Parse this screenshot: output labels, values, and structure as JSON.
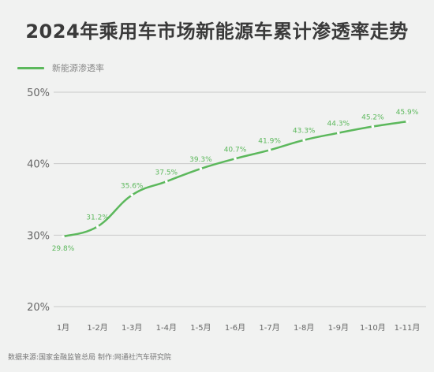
{
  "title": "2024年乘用车市场新能源车累计渗透率走势",
  "source": "数据来源:国家金融监管总局 制作:网通社汽车研究院",
  "colors": {
    "line": "#5cb85c",
    "grid": "#c9c9c9",
    "text": "#666666"
  },
  "chart_data": {
    "type": "line",
    "title": "2024年乘用车市场新能源车累计渗透率走势",
    "categories": [
      "1月",
      "1-2月",
      "1-3月",
      "1-4月",
      "1-5月",
      "1-6月",
      "1-7月",
      "1-8月",
      "1-9月",
      "1-10月",
      "1-11月"
    ],
    "series": [
      {
        "name": "新能源渗透率",
        "values": [
          29.8,
          31.2,
          35.6,
          37.5,
          39.3,
          40.7,
          41.9,
          43.3,
          44.3,
          45.2,
          45.9
        ],
        "labels": [
          "29.8%",
          "31.2%",
          "35.6%",
          "37.5%",
          "39.3%",
          "40.7%",
          "41.9%",
          "43.3%",
          "44.3%",
          "45.2%",
          "45.9%"
        ]
      }
    ],
    "yticks": [
      "20%",
      "30%",
      "40%",
      "50%"
    ],
    "ylim": [
      20,
      50
    ],
    "grid": true,
    "legend": "top-left"
  }
}
